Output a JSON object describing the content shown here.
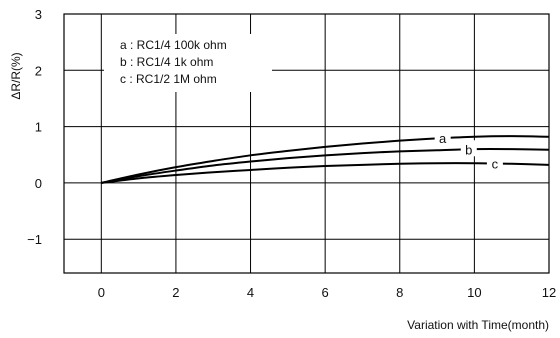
{
  "chart_data": {
    "type": "line",
    "xlabel": "Variation with Time(month)",
    "ylabel": "ΔR/R(%)",
    "xlim": [
      -1,
      12
    ],
    "ylim": [
      -1.6,
      3
    ],
    "x_ticks": [
      0,
      2,
      4,
      6,
      8,
      10,
      12
    ],
    "y_ticks": [
      3,
      2,
      1,
      0,
      -1
    ],
    "y_tick_labels": [
      "3",
      "2",
      "1",
      "0",
      "−1"
    ],
    "grid": true,
    "legend": [
      "a : RC1/4 100k ohm",
      "b : RC1/4 1k ohm",
      "c : RC1/2 1M ohm"
    ],
    "legend_position": "top-left",
    "series": [
      {
        "name": "a",
        "x": [
          0,
          1,
          2,
          3,
          4,
          5,
          6,
          7,
          8,
          9,
          10,
          11,
          12
        ],
        "values": [
          0,
          0.15,
          0.28,
          0.39,
          0.49,
          0.57,
          0.64,
          0.7,
          0.75,
          0.79,
          0.82,
          0.83,
          0.82
        ]
      },
      {
        "name": "b",
        "x": [
          0,
          1,
          2,
          3,
          4,
          5,
          6,
          7,
          8,
          9,
          10,
          11,
          12
        ],
        "values": [
          0,
          0.12,
          0.22,
          0.31,
          0.38,
          0.44,
          0.49,
          0.53,
          0.56,
          0.58,
          0.6,
          0.6,
          0.59
        ]
      },
      {
        "name": "c",
        "x": [
          0,
          1,
          2,
          3,
          4,
          5,
          6,
          7,
          8,
          9,
          10,
          11,
          12
        ],
        "values": [
          0,
          0.08,
          0.14,
          0.19,
          0.23,
          0.27,
          0.3,
          0.32,
          0.34,
          0.35,
          0.35,
          0.34,
          0.32
        ]
      }
    ]
  }
}
